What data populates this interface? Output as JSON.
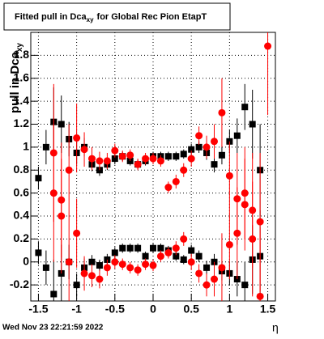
{
  "chart_data": {
    "type": "scatter",
    "title": {
      "main": "Fitted pull in Dca",
      "subscript": "xy",
      "rest": "for Global Rec Pion EtapT"
    },
    "y_label": {
      "main": "pull in Dca",
      "subscript": "xy"
    },
    "x_label": "η",
    "footer": "Wed Nov 23 22:21:59 2022",
    "xlim": [
      -1.6,
      1.6
    ],
    "ylim": [
      -0.34,
      2.0
    ],
    "xticks": [
      -1.5,
      -1,
      -0.5,
      0,
      0.5,
      1,
      1.5
    ],
    "yticks": [
      -0.2,
      0,
      0.2,
      0.4,
      0.6,
      0.8,
      1,
      1.2,
      1.4,
      1.6,
      1.8
    ],
    "grid": true,
    "x": [
      -1.5,
      -1.4,
      -1.3,
      -1.2,
      -1.1,
      -1.0,
      -0.9,
      -0.8,
      -0.7,
      -0.6,
      -0.5,
      -0.4,
      -0.3,
      -0.2,
      -0.1,
      0,
      0.1,
      0.2,
      0.3,
      0.4,
      0.5,
      0.6,
      0.7,
      0.8,
      0.9,
      1.0,
      1.1,
      1.2,
      1.3,
      1.4,
      1.5
    ],
    "series": [
      {
        "color": "#000000",
        "marker": "square",
        "values": [
          0.73,
          1.0,
          1.22,
          1.2,
          1.07,
          0.95,
          1.0,
          0.85,
          0.8,
          0.85,
          0.9,
          0.92,
          0.88,
          0.85,
          0.88,
          0.92,
          0.92,
          0.92,
          0.92,
          0.94,
          0.98,
          1.0,
          0.95,
          0.85,
          0.93,
          1.05,
          1.1,
          1.35,
          1.2,
          0.8,
          null
        ],
        "errors": [
          0.1,
          0.15,
          0.3,
          0.25,
          0.15,
          0.1,
          0.08,
          0.06,
          0.05,
          0.05,
          0.05,
          0.04,
          0.04,
          0.04,
          0.04,
          0.04,
          0.04,
          0.04,
          0.04,
          0.04,
          0.05,
          0.05,
          0.06,
          0.07,
          0.08,
          0.1,
          0.15,
          0.2,
          0.3,
          0.4,
          null
        ]
      },
      {
        "color": "#000000",
        "marker": "square",
        "values": [
          0.08,
          -0.05,
          -0.28,
          -0.1,
          0.0,
          -0.2,
          -0.05,
          0.0,
          -0.03,
          0.02,
          0.08,
          0.12,
          0.12,
          0.12,
          0.05,
          0.12,
          0.12,
          0.1,
          0.05,
          0.02,
          0.1,
          0.05,
          -0.05,
          0.0,
          -0.08,
          -0.1,
          -0.15,
          -0.2,
          0.02,
          0.05,
          null
        ],
        "errors": [
          0.1,
          0.15,
          0.3,
          0.25,
          0.15,
          0.1,
          0.08,
          0.06,
          0.05,
          0.05,
          0.05,
          0.04,
          0.04,
          0.04,
          0.04,
          0.04,
          0.04,
          0.04,
          0.04,
          0.04,
          0.05,
          0.05,
          0.06,
          0.07,
          0.08,
          0.1,
          0.15,
          0.2,
          0.3,
          0.4,
          null
        ]
      },
      {
        "color": "#ff0000",
        "marker": "circle",
        "values": [
          null,
          null,
          0.95,
          0.54,
          0.8,
          1.08,
          0.98,
          0.9,
          0.88,
          0.88,
          0.97,
          0.92,
          0.93,
          0.85,
          0.9,
          0.9,
          0.88,
          0.65,
          0.7,
          0.8,
          0.9,
          1.1,
          1.0,
          1.05,
          1.3,
          0.75,
          0.55,
          0.6,
          0.45,
          0.35,
          1.88
        ],
        "errors": [
          null,
          null,
          0.6,
          0.5,
          0.4,
          0.3,
          0.15,
          0.1,
          0.08,
          0.07,
          0.06,
          0.05,
          0.05,
          0.05,
          0.05,
          0.05,
          0.05,
          0.05,
          0.06,
          0.06,
          0.07,
          0.08,
          0.1,
          0.15,
          0.3,
          0.3,
          0.4,
          0.4,
          0.5,
          0.6,
          0.6
        ]
      },
      {
        "color": "#ff0000",
        "marker": "circle",
        "values": [
          null,
          null,
          0.6,
          0.4,
          0.0,
          0.25,
          -0.1,
          -0.12,
          -0.15,
          -0.05,
          0.0,
          -0.02,
          -0.05,
          -0.07,
          -0.02,
          -0.03,
          0.05,
          0.08,
          0.12,
          0.2,
          0.0,
          -0.1,
          -0.2,
          -0.15,
          -0.05,
          0.15,
          0.25,
          0.5,
          0.2,
          -0.3,
          null
        ],
        "errors": [
          null,
          null,
          0.6,
          0.5,
          0.4,
          0.3,
          0.15,
          0.1,
          0.08,
          0.07,
          0.06,
          0.05,
          0.05,
          0.05,
          0.05,
          0.05,
          0.05,
          0.05,
          0.06,
          0.06,
          0.07,
          0.08,
          0.1,
          0.15,
          0.3,
          0.3,
          0.4,
          0.4,
          0.5,
          0.6,
          0.6
        ]
      }
    ]
  }
}
